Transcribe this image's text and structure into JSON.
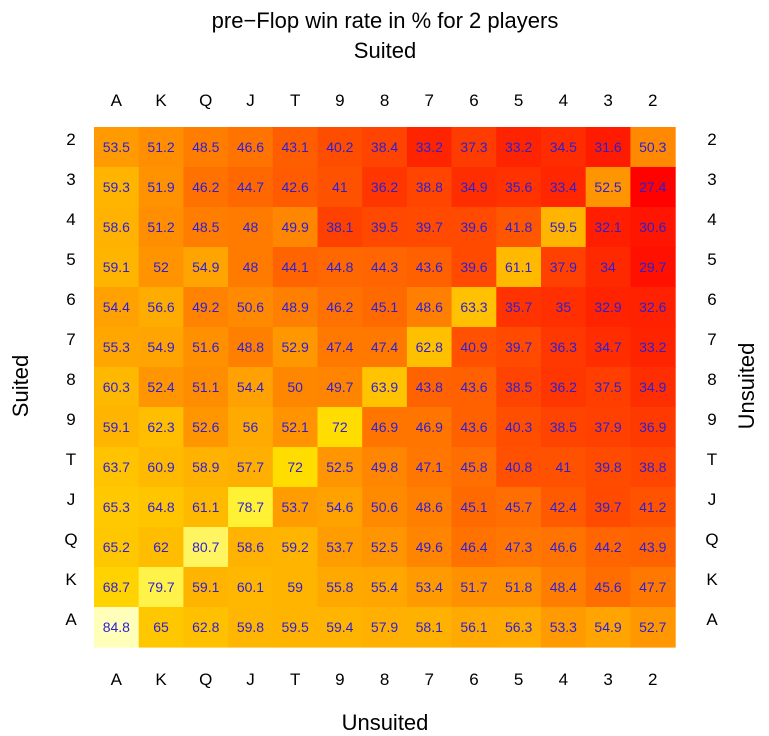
{
  "chart_data": {
    "type": "heatmap",
    "title": "pre−Flop win rate in % for 2 players",
    "subtitle": "Suited",
    "xlabel": "Unsuited",
    "ylabel_left": "Suited",
    "ylabel_right": "Unsuited",
    "columns": [
      "A",
      "K",
      "Q",
      "J",
      "T",
      "9",
      "8",
      "7",
      "6",
      "5",
      "4",
      "3",
      "2"
    ],
    "rows": [
      "2",
      "3",
      "4",
      "5",
      "6",
      "7",
      "8",
      "9",
      "T",
      "J",
      "Q",
      "K",
      "A"
    ],
    "values": [
      [
        "53.5",
        "51.2",
        "48.5",
        "46.6",
        "43.1",
        "40.2",
        "38.4",
        "33.2",
        "37.3",
        "33.2",
        "34.5",
        "31.6",
        "50.3"
      ],
      [
        "59.3",
        "51.9",
        "46.2",
        "44.7",
        "42.6",
        "41",
        "36.2",
        "38.8",
        "34.9",
        "35.6",
        "33.4",
        "52.5",
        "27.4"
      ],
      [
        "58.6",
        "51.2",
        "48.5",
        "48",
        "49.9",
        "38.1",
        "39.5",
        "39.7",
        "39.6",
        "41.8",
        "59.5",
        "32.1",
        "30.6"
      ],
      [
        "59.1",
        "52",
        "54.9",
        "48",
        "44.1",
        "44.8",
        "44.3",
        "43.6",
        "39.6",
        "61.1",
        "37.9",
        "34",
        "29.7"
      ],
      [
        "54.4",
        "56.6",
        "49.2",
        "50.6",
        "48.9",
        "46.2",
        "45.1",
        "48.6",
        "63.3",
        "35.7",
        "35",
        "32.9",
        "32.6"
      ],
      [
        "55.3",
        "54.9",
        "51.6",
        "48.8",
        "52.9",
        "47.4",
        "47.4",
        "62.8",
        "40.9",
        "39.7",
        "36.3",
        "34.7",
        "33.2"
      ],
      [
        "60.3",
        "52.4",
        "51.1",
        "54.4",
        "50",
        "49.7",
        "63.9",
        "43.8",
        "43.6",
        "38.5",
        "36.2",
        "37.5",
        "34.9"
      ],
      [
        "59.1",
        "62.3",
        "52.6",
        "56",
        "52.1",
        "72",
        "46.9",
        "46.9",
        "43.6",
        "40.3",
        "38.5",
        "37.9",
        "36.9"
      ],
      [
        "63.7",
        "60.9",
        "58.9",
        "57.7",
        "72",
        "52.5",
        "49.8",
        "47.1",
        "45.8",
        "40.8",
        "41",
        "39.8",
        "38.8"
      ],
      [
        "65.3",
        "64.8",
        "61.1",
        "78.7",
        "53.7",
        "54.6",
        "50.6",
        "48.6",
        "45.1",
        "45.7",
        "42.4",
        "39.7",
        "41.2"
      ],
      [
        "65.2",
        "62",
        "80.7",
        "58.6",
        "59.2",
        "53.7",
        "52.5",
        "49.6",
        "46.4",
        "47.3",
        "46.6",
        "44.2",
        "43.9"
      ],
      [
        "68.7",
        "79.7",
        "59.1",
        "60.1",
        "59",
        "55.8",
        "55.4",
        "53.4",
        "51.7",
        "51.8",
        "48.4",
        "45.6",
        "47.7"
      ],
      [
        "84.8",
        "65",
        "62.8",
        "59.8",
        "59.5",
        "59.4",
        "57.9",
        "58.1",
        "56.1",
        "56.3",
        "53.3",
        "54.9",
        "52.7"
      ]
    ],
    "color_scale": {
      "low": "#ff0000",
      "mid": "#ffa500",
      "high": "#ffff00",
      "top": "#ffffcc",
      "range": [
        27,
        85
      ]
    },
    "label_color": "#2a1fd6"
  }
}
